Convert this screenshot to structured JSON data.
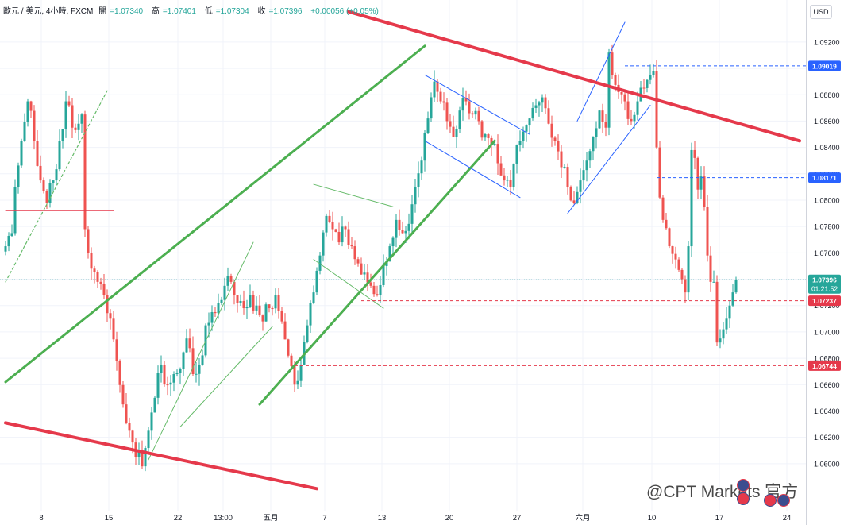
{
  "header": {
    "symbol": "歐元 / 美元, 4小時, FXCM",
    "open_label": "開",
    "open": "=1.07340",
    "high_label": "高",
    "high": "=1.07401",
    "low_label": "低",
    "low": "=1.07304",
    "close_label": "收",
    "close": "=1.07396",
    "change": "+0.00056 (+0.05%)"
  },
  "currency_button": "USD",
  "watermark": "@CPT Markets 官方",
  "colors": {
    "up": "#26a69a",
    "down": "#ef5350",
    "green_channel": "#4caf50",
    "red_line": "#e5394b",
    "blue_line": "#2962ff",
    "grid": "#f0f3fa"
  },
  "chart_data": {
    "type": "candlestick",
    "ylim": [
      1.058,
      1.0935
    ],
    "y_ticks": [
      1.06,
      1.062,
      1.064,
      1.066,
      1.068,
      1.07,
      1.072,
      1.074,
      1.076,
      1.078,
      1.08,
      1.082,
      1.084,
      1.086,
      1.088,
      1.09,
      1.092
    ],
    "y_tick_labels": [
      "1.06000",
      "1.06200",
      "1.06400",
      "1.06600",
      "1.06800",
      "1.07000",
      "1.07200",
      "1.07400",
      "1.07600",
      "1.07800",
      "1.08000",
      "1.08200",
      "1.08400",
      "1.08600",
      "1.08800",
      "1.09000",
      "1.09200"
    ],
    "x_tick_labels": [
      "8",
      "15",
      "22",
      "13:00",
      "五月",
      "7",
      "13",
      "20",
      "27",
      "六月",
      "10",
      "17",
      "24"
    ],
    "price_badges": [
      {
        "label": "1.09019",
        "value": 1.09019,
        "color": "#2962ff",
        "line_style": "dashed"
      },
      {
        "label": "1.08171",
        "value": 1.08171,
        "color": "#2962ff",
        "line_style": "dashed"
      },
      {
        "label": "1.07396",
        "sublabel": "01:21:52",
        "value": 1.07396,
        "color": "#26a69a",
        "line_style": "dotted"
      },
      {
        "label": "1.07237",
        "value": 1.07237,
        "color": "#e5394b",
        "line_style": "dashed"
      },
      {
        "label": "1.06744",
        "value": 1.06744,
        "color": "#e5394b",
        "line_style": "dashed"
      }
    ],
    "waypoints": [
      [
        0,
        1.0765
      ],
      [
        2,
        1.0775
      ],
      [
        3,
        1.081
      ],
      [
        5,
        1.0845
      ],
      [
        7,
        1.0875
      ],
      [
        9,
        1.0845
      ],
      [
        11,
        1.0815
      ],
      [
        13,
        1.0798
      ],
      [
        15,
        1.0815
      ],
      [
        17,
        1.0845
      ],
      [
        19,
        1.0875
      ],
      [
        21,
        1.0855
      ],
      [
        23,
        1.0858
      ],
      [
        24,
        1.0865
      ],
      [
        25,
        1.0778
      ],
      [
        27,
        1.0748
      ],
      [
        29,
        1.0738
      ],
      [
        31,
        1.0728
      ],
      [
        33,
        1.071
      ],
      [
        35,
        1.0678
      ],
      [
        37,
        1.0645
      ],
      [
        39,
        1.0625
      ],
      [
        41,
        1.0605
      ],
      [
        43,
        1.0598
      ],
      [
        45,
        1.0625
      ],
      [
        47,
        1.065
      ],
      [
        49,
        1.0675
      ],
      [
        51,
        1.066
      ],
      [
        53,
        1.0668
      ],
      [
        55,
        1.0672
      ],
      [
        57,
        1.0695
      ],
      [
        59,
        1.0668
      ],
      [
        61,
        1.0675
      ],
      [
        63,
        1.0705
      ],
      [
        65,
        1.0715
      ],
      [
        67,
        1.0722
      ],
      [
        69,
        1.0735
      ],
      [
        71,
        1.0738
      ],
      [
        73,
        1.0722
      ],
      [
        75,
        1.0718
      ],
      [
        77,
        1.0728
      ],
      [
        79,
        1.072
      ],
      [
        81,
        1.0708
      ],
      [
        83,
        1.0718
      ],
      [
        85,
        1.0728
      ],
      [
        87,
        1.0708
      ],
      [
        89,
        1.0682
      ],
      [
        91,
        1.066
      ],
      [
        93,
        1.0675
      ],
      [
        95,
        1.0705
      ],
      [
        97,
        1.073
      ],
      [
        99,
        1.0758
      ],
      [
        101,
        1.0788
      ],
      [
        103,
        1.0778
      ],
      [
        105,
        1.0768
      ],
      [
        107,
        1.0778
      ],
      [
        109,
        1.0765
      ],
      [
        111,
        1.0752
      ],
      [
        113,
        1.0745
      ],
      [
        115,
        1.0735
      ],
      [
        117,
        1.0728
      ],
      [
        119,
        1.075
      ],
      [
        121,
        1.0765
      ],
      [
        123,
        1.0785
      ],
      [
        125,
        1.0775
      ],
      [
        127,
        1.0782
      ],
      [
        129,
        1.081
      ],
      [
        131,
        1.083
      ],
      [
        133,
        1.0862
      ],
      [
        135,
        1.089
      ],
      [
        137,
        1.0875
      ],
      [
        139,
        1.086
      ],
      [
        141,
        1.0848
      ],
      [
        143,
        1.0868
      ],
      [
        145,
        1.0875
      ],
      [
        147,
        1.0865
      ],
      [
        149,
        1.086
      ],
      [
        151,
        1.085
      ],
      [
        153,
        1.0842
      ],
      [
        155,
        1.0828
      ],
      [
        157,
        1.0815
      ],
      [
        159,
        1.081
      ],
      [
        161,
        1.0842
      ],
      [
        163,
        1.0852
      ],
      [
        165,
        1.0862
      ],
      [
        167,
        1.0872
      ],
      [
        169,
        1.0878
      ],
      [
        171,
        1.0858
      ],
      [
        173,
        1.0845
      ],
      [
        175,
        1.0825
      ],
      [
        177,
        1.081
      ],
      [
        179,
        1.0798
      ],
      [
        181,
        1.0815
      ],
      [
        183,
        1.083
      ],
      [
        185,
        1.0848
      ],
      [
        187,
        1.0868
      ],
      [
        189,
        1.0855
      ],
      [
        190,
        1.0912
      ],
      [
        191,
        1.0895
      ],
      [
        193,
        1.0882
      ],
      [
        195,
        1.0875
      ],
      [
        197,
        1.086
      ],
      [
        199,
        1.0875
      ],
      [
        201,
        1.0885
      ],
      [
        203,
        1.0895
      ],
      [
        204,
        1.0898
      ],
      [
        205,
        1.084
      ],
      [
        206,
        1.0802
      ],
      [
        207,
        1.0785
      ],
      [
        209,
        1.0765
      ],
      [
        211,
        1.0755
      ],
      [
        213,
        1.074
      ],
      [
        214,
        1.073
      ],
      [
        215,
        1.0765
      ],
      [
        216,
        1.0838
      ],
      [
        217,
        1.0832
      ],
      [
        218,
        1.0808
      ],
      [
        219,
        1.0818
      ],
      [
        220,
        1.0795
      ],
      [
        221,
        1.0758
      ],
      [
        222,
        1.0738
      ],
      [
        223,
        1.0738
      ],
      [
        224,
        1.0692
      ],
      [
        225,
        1.0695
      ],
      [
        226,
        1.0702
      ],
      [
        227,
        1.071
      ],
      [
        228,
        1.072
      ],
      [
        229,
        1.073
      ],
      [
        230,
        1.07396
      ]
    ],
    "drawings": {
      "green_channel_upper": [
        [
          0,
          1.0662
        ],
        [
          132,
          1.0917
        ]
      ],
      "green_channel_lower": [
        [
          80,
          1.0645
        ],
        [
          154,
          1.0845
        ]
      ],
      "thin_green_line_1": [
        [
          45,
          1.0603
        ],
        [
          78,
          1.0768
        ]
      ],
      "thin_green_line_2": [
        [
          55,
          1.0628
        ],
        [
          84,
          1.0704
        ]
      ],
      "thin_green_triangle_top": [
        [
          97,
          1.0812
        ],
        [
          122,
          1.0795
        ]
      ],
      "thin_green_triangle_bottom": [
        [
          97,
          1.0755
        ],
        [
          119,
          1.0718
        ]
      ],
      "blue_descending_upper": [
        [
          132,
          1.0895
        ],
        [
          165,
          1.085
        ]
      ],
      "blue_descending_lower": [
        [
          132,
          1.0845
        ],
        [
          162,
          1.0802
        ]
      ],
      "blue_rising_wedge_upper": [
        [
          180,
          1.086
        ],
        [
          195,
          1.0935
        ]
      ],
      "blue_rising_wedge_lower": [
        [
          177,
          1.079
        ],
        [
          203,
          1.0872
        ]
      ],
      "red_resistance": [
        [
          108,
          1.0943
        ],
        [
          250,
          1.0845
        ]
      ],
      "red_support": [
        [
          0,
          1.0631
        ],
        [
          98,
          1.0581
        ]
      ],
      "red_horizontal_left": [
        [
          0,
          1.0792
        ],
        [
          34,
          1.0792
        ]
      ],
      "green_dashed_trend": [
        [
          0,
          1.0738
        ],
        [
          32,
          1.0883
        ]
      ]
    }
  }
}
